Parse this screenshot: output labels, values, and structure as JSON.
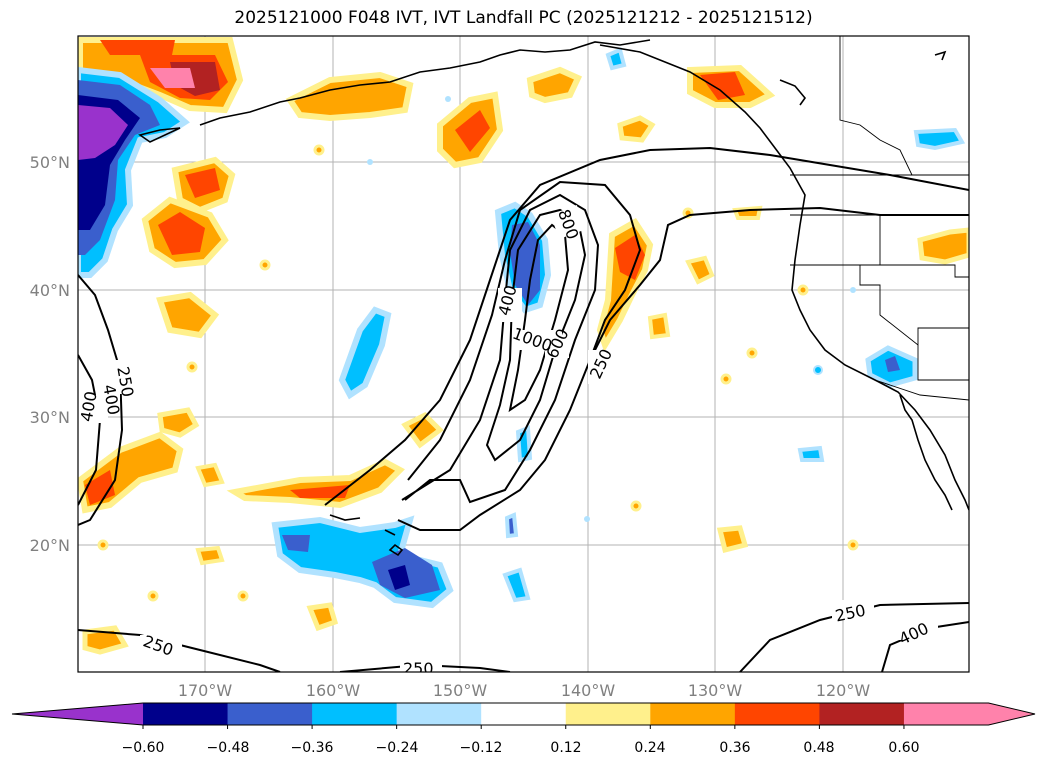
{
  "title": "2025121000 F048 IVT, IVT Landfall PC (2025121212 - 2025121512)",
  "lat_labels": [
    "50°N",
    "40°N",
    "30°N",
    "20°N"
  ],
  "lon_labels": [
    "170°W",
    "160°W",
    "150°W",
    "140°W",
    "130°W",
    "120°W"
  ],
  "contour_labels": [
    "800",
    "400",
    "1000",
    "600",
    "250",
    "250",
    "400",
    "400",
    "250",
    "250",
    "250",
    "400"
  ],
  "colorbar": {
    "ticks": [
      "−0.60",
      "−0.48",
      "−0.36",
      "−0.24",
      "−0.12",
      "0.12",
      "0.24",
      "0.36",
      "0.48",
      "0.60"
    ],
    "colors": [
      "#9932cc",
      "#00008b",
      "#3a5fcd",
      "#00bfff",
      "#b0e2ff",
      "#ffffff",
      "#fff08c",
      "#ffa500",
      "#ff4500",
      "#b22222",
      "#ff82ab",
      "#ff82ab"
    ]
  }
}
